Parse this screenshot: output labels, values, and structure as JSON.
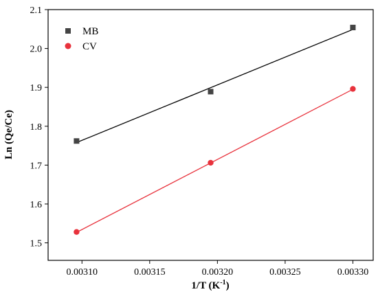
{
  "chart_data": {
    "type": "scatter",
    "title": "",
    "xlabel": "1/T (K",
    "xlabel_sup": "-1",
    "xlabel_close": ")",
    "ylabel": "Ln (Qe/Ce)",
    "xlim": [
      0.003075,
      0.003315
    ],
    "ylim": [
      1.455,
      2.1
    ],
    "x_ticks": [
      0.0031,
      0.00315,
      0.0032,
      0.00325,
      0.0033
    ],
    "x_tick_labels": [
      "0.00310",
      "0.00315",
      "0.00320",
      "0.00325",
      "0.00330"
    ],
    "y_ticks": [
      1.5,
      1.6,
      1.7,
      1.8,
      1.9,
      2.0,
      2.1
    ],
    "y_tick_labels": [
      "1.5",
      "1.6",
      "1.7",
      "1.8",
      "1.9",
      "2.0",
      "2.1"
    ],
    "grid": false,
    "legend_position": "top-left",
    "series": [
      {
        "name": "MB",
        "marker": "square",
        "color": "#444444",
        "line_color": "#000000",
        "x": [
          0.003096,
          0.003195,
          0.0033
        ],
        "y": [
          1.762,
          1.889,
          2.054
        ],
        "fit": {
          "x": [
            0.003096,
            0.0033
          ],
          "y": [
            1.758,
            2.049
          ]
        }
      },
      {
        "name": "CV",
        "marker": "circle",
        "color": "#e8323c",
        "line_color": "#e8323c",
        "x": [
          0.003096,
          0.003195,
          0.0033
        ],
        "y": [
          1.528,
          1.706,
          1.896
        ],
        "fit": {
          "x": [
            0.003096,
            0.0033
          ],
          "y": [
            1.527,
            1.895
          ]
        }
      }
    ]
  }
}
